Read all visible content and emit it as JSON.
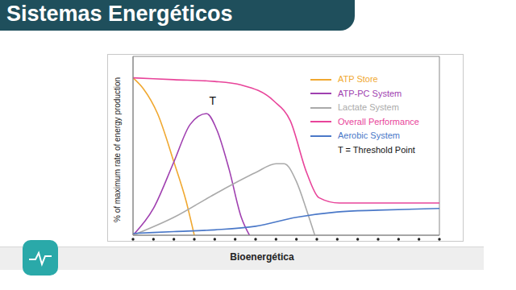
{
  "slide": {
    "title": "Sistemas Energéticos",
    "banner": "Bioenergética"
  },
  "chart_data": {
    "type": "line",
    "y_label": "% of maximum rate of energy production",
    "xlim": [
      0,
      15
    ],
    "xticks": [
      0,
      1,
      2,
      3,
      4,
      5,
      6,
      7,
      8,
      9,
      10,
      11,
      12,
      13,
      14,
      15
    ],
    "ylim": [
      0,
      100
    ],
    "tick_labels": false,
    "legend": "upper right",
    "legend_note": "T = Threshold Point",
    "annotations": [
      {
        "text": "T",
        "x": 3.9,
        "y": 75
      }
    ],
    "series": [
      {
        "name": "ATP Store",
        "color": "#f0a830",
        "x": [
          0,
          0.5,
          1.2,
          2,
          2.6,
          3
        ],
        "values": [
          88,
          82,
          68,
          41,
          19,
          0
        ]
      },
      {
        "name": "ATP-PC System",
        "color": "#a040b0",
        "x": [
          0,
          1,
          2,
          2.8,
          3.6,
          4.1,
          4.7,
          5.3,
          5.7
        ],
        "values": [
          0,
          15,
          41,
          62,
          68,
          59,
          37,
          10,
          0
        ]
      },
      {
        "name": "Lactate System",
        "color": "#aaaaaa",
        "x": [
          0,
          2,
          4,
          6,
          7,
          7.4,
          8,
          8.5,
          8.9
        ],
        "values": [
          0,
          10,
          23,
          35,
          40,
          40,
          30,
          14,
          0
        ]
      },
      {
        "name": "Overall Performance",
        "color": "#e8449a",
        "x": [
          0,
          2,
          4,
          5.3,
          6.9,
          7.7,
          8.5,
          9.1,
          10.1,
          12,
          15
        ],
        "values": [
          88,
          87,
          86,
          84,
          75,
          64,
          35,
          21,
          18,
          18,
          18
        ]
      },
      {
        "name": "Aerobic System",
        "color": "#4a78c8",
        "x": [
          0,
          2,
          4,
          6,
          8,
          10,
          12,
          15
        ],
        "values": [
          1,
          2,
          3,
          5,
          10,
          13,
          14,
          15
        ]
      }
    ]
  }
}
